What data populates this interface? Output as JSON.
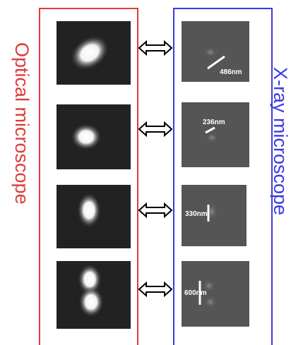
{
  "left_label": "Optical microscope",
  "right_label": "X-ray microscope",
  "scale_labels": [
    "486nm",
    "236nm",
    "330nm",
    "600nm"
  ]
}
